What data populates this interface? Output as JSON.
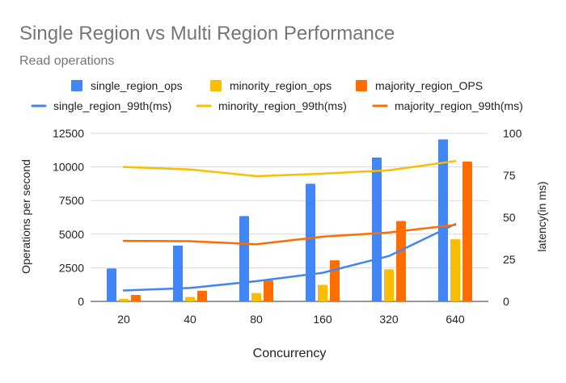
{
  "chart_data": {
    "type": "bar",
    "title": "Single Region vs Multi Region Performance",
    "subtitle": "Read operations",
    "xlabel": "Concurrency",
    "ylabel": "Operations per second",
    "y2label": "latency(in ms)",
    "categories": [
      "20",
      "40",
      "80",
      "160",
      "320",
      "640"
    ],
    "ylim": [
      0,
      12500
    ],
    "yticks": [
      0,
      2500,
      5000,
      7500,
      10000,
      12500
    ],
    "ytick_labels": [
      "0",
      "2500",
      "5000",
      "7500",
      "10000",
      "12500"
    ],
    "y2lim": [
      0,
      100
    ],
    "y2ticks": [
      0,
      25,
      50,
      75,
      100
    ],
    "y2tick_labels": [
      "0",
      "25",
      "50",
      "75",
      "100"
    ],
    "grid": true,
    "legend_position": "top",
    "bar_series": [
      {
        "name": "single_region_ops",
        "color": "#4285f4",
        "values": [
          2450,
          4150,
          6350,
          8750,
          10700,
          12050
        ]
      },
      {
        "name": "minority_region_ops",
        "color": "#fbbc04",
        "values": [
          180,
          330,
          620,
          1230,
          2380,
          4620
        ]
      },
      {
        "name": "majority_region_OPS",
        "color": "#ff6d01",
        "values": [
          480,
          800,
          1560,
          3060,
          5980,
          10400
        ]
      }
    ],
    "line_series": [
      {
        "name": "single_region_99th(ms)",
        "color": "#4285f4",
        "values": [
          6.5,
          8,
          12,
          17,
          27,
          46
        ]
      },
      {
        "name": "minority_region_99th(ms)",
        "color": "#fbbc04",
        "values": [
          80,
          78.5,
          74.5,
          76,
          78,
          83.5
        ]
      },
      {
        "name": "majority_region_99th(ms)",
        "color": "#ff6d01",
        "values": [
          36,
          35.8,
          34,
          38.5,
          41,
          45.5
        ]
      }
    ]
  }
}
